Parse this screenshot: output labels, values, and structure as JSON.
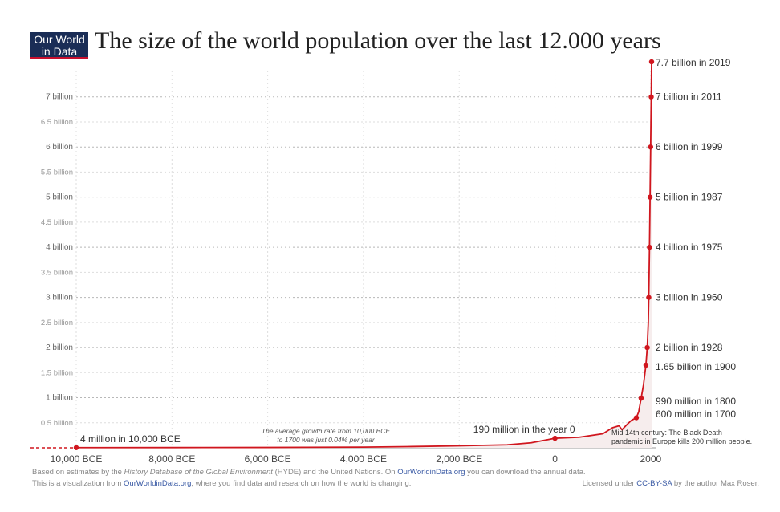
{
  "logo": {
    "line1": "Our World",
    "line2": "in Data"
  },
  "title": "The size of the world population over the last 12.000 years",
  "colors": {
    "line": "#d0161e",
    "logo_bg": "#1a2d56",
    "logo_accent": "#c8102e",
    "grid": "#cccccc",
    "text": "#333333",
    "link": "#3b5ba5"
  },
  "chart_data": {
    "type": "line",
    "title": "The size of the world population over the last 12.000 years",
    "xlabel": "",
    "ylabel": "",
    "x_ticks": [
      {
        "value": -10000,
        "label": "10,000 BCE"
      },
      {
        "value": -8000,
        "label": "8,000 BCE"
      },
      {
        "value": -6000,
        "label": "6,000 BCE"
      },
      {
        "value": -4000,
        "label": "4,000 BCE"
      },
      {
        "value": -2000,
        "label": "2,000 BCE"
      },
      {
        "value": 0,
        "label": "0"
      },
      {
        "value": 2000,
        "label": "2000"
      }
    ],
    "xlim": [
      -11000,
      2100
    ],
    "ylim": [
      0,
      7.7
    ],
    "y_ticks": [
      {
        "value": 0.5,
        "label": "0.5 billion"
      },
      {
        "value": 1,
        "label": "1 billion"
      },
      {
        "value": 1.5,
        "label": "1.5 billion"
      },
      {
        "value": 2,
        "label": "2 billion"
      },
      {
        "value": 2.5,
        "label": "2.5 billion"
      },
      {
        "value": 3,
        "label": "3 billion"
      },
      {
        "value": 3.5,
        "label": "3.5  billion"
      },
      {
        "value": 4,
        "label": "4 billion"
      },
      {
        "value": 4.5,
        "label": "4.5 billion"
      },
      {
        "value": 5,
        "label": "5 billion"
      },
      {
        "value": 5.5,
        "label": "5.5 billion"
      },
      {
        "value": 6,
        "label": "6 billion"
      },
      {
        "value": 6.5,
        "label": "6.5 billion"
      },
      {
        "value": 7,
        "label": "7 billion"
      }
    ],
    "grid": true,
    "series": [
      {
        "points": [
          [
            -10000,
            0.004
          ],
          [
            -8000,
            0.005
          ],
          [
            -6000,
            0.007
          ],
          [
            -4000,
            0.014
          ],
          [
            -3000,
            0.025
          ],
          [
            -2000,
            0.04
          ],
          [
            -1000,
            0.06
          ],
          [
            -500,
            0.1
          ],
          [
            0,
            0.19
          ],
          [
            500,
            0.21
          ],
          [
            1000,
            0.28
          ],
          [
            1200,
            0.4
          ],
          [
            1340,
            0.44
          ],
          [
            1400,
            0.36
          ],
          [
            1500,
            0.46
          ],
          [
            1600,
            0.55
          ],
          [
            1700,
            0.6
          ],
          [
            1750,
            0.72
          ],
          [
            1800,
            0.99
          ],
          [
            1850,
            1.26
          ],
          [
            1900,
            1.65
          ],
          [
            1928,
            2.0
          ],
          [
            1950,
            2.5
          ],
          [
            1960,
            3.0
          ],
          [
            1975,
            4.0
          ],
          [
            1987,
            5.0
          ],
          [
            1999,
            6.0
          ],
          [
            2011,
            7.0
          ],
          [
            2019,
            7.7
          ]
        ]
      }
    ],
    "annotations": [
      {
        "x": -10000,
        "y": 0.004,
        "label": "4 million in 10,000 BCE"
      },
      {
        "x": 0,
        "y": 0.19,
        "label": "190 million in the year 0"
      },
      {
        "x": 1700,
        "y": 0.6,
        "label": "600 million in 1700"
      },
      {
        "x": 1800,
        "y": 0.99,
        "label": "990 million in 1800"
      },
      {
        "x": 1900,
        "y": 1.65,
        "label": "1.65 billion in 1900"
      },
      {
        "x": 1928,
        "y": 2.0,
        "label": "2 billion in 1928"
      },
      {
        "x": 1960,
        "y": 3.0,
        "label": "3 billion in 1960"
      },
      {
        "x": 1975,
        "y": 4.0,
        "label": "4 billion in 1975"
      },
      {
        "x": 1987,
        "y": 5.0,
        "label": "5 billion in 1987"
      },
      {
        "x": 1999,
        "y": 6.0,
        "label": "6 billion in 1999"
      },
      {
        "x": 2011,
        "y": 7.0,
        "label": "7 billion in 2011"
      },
      {
        "x": 2019,
        "y": 7.7,
        "label": "7.7 billion in 2019"
      }
    ],
    "notes": {
      "growth_rate_line1": "The average growth rate from 10,000 BCE",
      "growth_rate_line2": "to 1700 was just  0.04% per year",
      "black_death_line1": "Mid 14th century: The Black Death",
      "black_death_line2": "pandemic in Europe kills 200 million people."
    }
  },
  "footer": {
    "line1_a": "Based on estimates by the ",
    "line1_b": "History Database of the Global Environment",
    "line1_c": " (HYDE) and the United Nations. On ",
    "line1_link": "OurWorldinData.org",
    "line1_d": " you can download the annual data.",
    "line2_a": "This is a visualization from ",
    "line2_link": "OurWorldinData.org",
    "line2_b": ", where you find data and research on how the world is changing.",
    "license_a": "Licensed under ",
    "license_link": "CC-BY-SA",
    "license_b": " by the author Max Roser."
  }
}
